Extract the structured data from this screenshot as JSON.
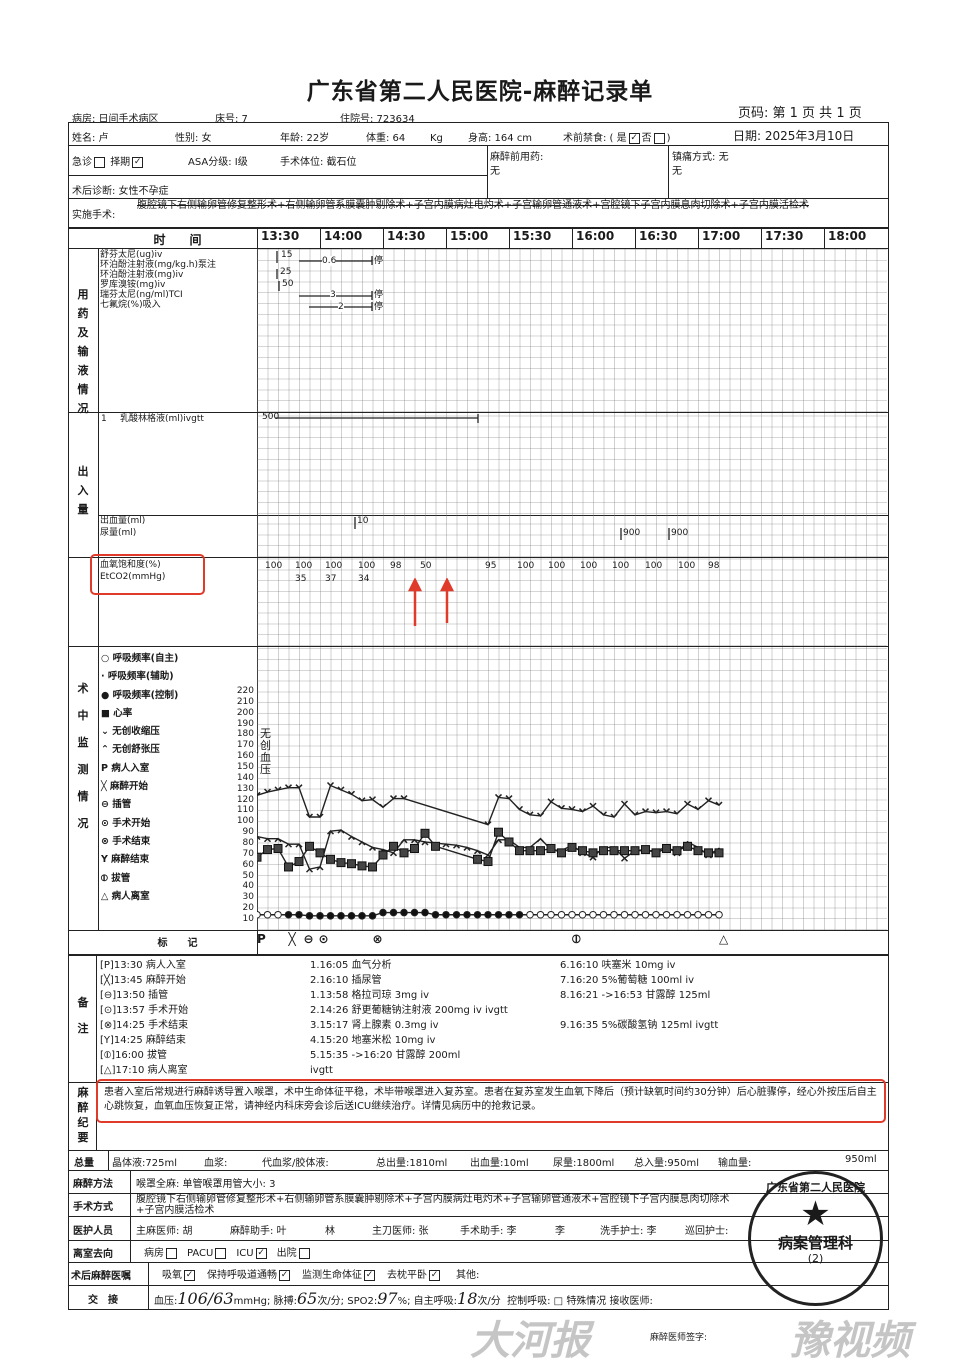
{
  "title": "广东省第二人民医院-麻醉记录单",
  "header": {
    "ward": "病房: 日间手术病区",
    "bed": "床号: 7",
    "admission_no": "住院号: 723634",
    "page": "页码: 第 1 页 共 1 页"
  },
  "patient": {
    "name": "姓名: 卢",
    "sex": "性别: 女",
    "age": "年龄: 22岁",
    "weight": "体重: 64",
    "weight_unit": "Kg",
    "height": "身高: 164 cm",
    "fasting": "术前禁食: ( 是",
    "fasting_yes": "✓",
    "fasting_no": "否",
    "date": "日期: 2025年3月10日",
    "emergency": "急诊",
    "elective": "择期",
    "elective_checked": "✓",
    "asa": "ASA分级: Ⅰ级",
    "position": "手术体位: 截石位",
    "premed_label": "麻醉前用药:",
    "premed": "无",
    "analgesia_label": "镇痛方式:",
    "analgesia": "无",
    "analgesia2": "无",
    "diagnosis": "术后诊断: 女性不孕症",
    "surgery_label": "实施手术:",
    "surgery": "腹腔镜下右侧输卵管修复整形术+右侧输卵管系膜囊肿剔除术+子宫内膜病灶电灼术+子宫输卵管通液术+宫腔镜下子宫内膜息肉切除术+子宫内膜活检术"
  },
  "timeline": {
    "label": "时　　间",
    "times": [
      "13:30",
      "14:00",
      "14:30",
      "15:00",
      "15:30",
      "16:00",
      "16:30",
      "17:00",
      "17:30",
      "18:00"
    ]
  },
  "medication": {
    "section": "用药及输液情况",
    "drugs": [
      "舒芬太尼(ug)iv",
      "环泊酚注射液(mg/kg.h)泵注",
      "环泊酚注射液(mg)iv",
      "罗库溴铵(mg)iv",
      "瑞芬太尼(ng/ml)TCI",
      "七氟烷(%)吸入"
    ],
    "marks": {
      "sufentanil": "15",
      "ciprofol_infusion": "0.6",
      "ciprofol_iv": "25",
      "rocuronium": "50",
      "remifentanil": "3",
      "sevoflurane": "2",
      "stop": "停"
    }
  },
  "io": {
    "section": "出入量",
    "fluid_no": "1",
    "fluid": "乳酸林格液(ml)ivgtt",
    "fluid_volume": "500",
    "blood_loss": "出血量(ml)",
    "urine": "尿量(ml)",
    "blood_mark": "10",
    "urine_marks": [
      "900",
      "900"
    ]
  },
  "spo2": {
    "label1": "血氧饱和度(%)",
    "label2": "EtCO2(mmHg)",
    "spo2_values": [
      "100",
      "100",
      "100",
      "100",
      "98",
      "50",
      "95",
      "100",
      "100",
      "100",
      "100",
      "100",
      "100",
      "98"
    ],
    "etco2_values": [
      "35",
      "37",
      "34"
    ]
  },
  "monitor": {
    "section": "术中监测情况",
    "legend": [
      "○ 呼吸频率(自主)",
      "· 呼吸频率(辅助)",
      "● 呼吸频率(控制)",
      "■ 心率",
      "⌄ 无创收缩压",
      "⌃ 无创舒张压",
      "P 病人入室",
      "╳ 麻醉开始",
      "⊖ 插管",
      "⊙ 手术开始",
      "⊗ 手术结束",
      "Y 麻醉结束",
      "⦶ 拔管",
      "△ 病人离室"
    ],
    "yticks": [
      "220",
      "210",
      "200",
      "190",
      "180",
      "170",
      "160",
      "150",
      "140",
      "130",
      "120",
      "110",
      "100",
      "90",
      "80",
      "70",
      "60",
      "50",
      "40",
      "30",
      "20",
      "10"
    ],
    "axis_text": "无创血压",
    "marker_label": "标　　记",
    "markers": [
      {
        "t": "13:30",
        "s": "P"
      },
      {
        "t": "13:45",
        "s": "╳"
      },
      {
        "t": "13:50",
        "s": "⊖"
      },
      {
        "t": "13:57",
        "s": "⊙"
      },
      {
        "t": "14:25",
        "s": "⊗"
      },
      {
        "t": "16:00",
        "s": "⦶"
      },
      {
        "t": "17:10",
        "s": "△"
      }
    ],
    "chart_data": {
      "type": "line",
      "ylim": [
        10,
        220
      ],
      "times": [
        "13:30",
        "13:35",
        "13:40",
        "13:45",
        "13:50",
        "13:55",
        "14:00",
        "14:05",
        "14:10",
        "14:15",
        "14:20",
        "14:25",
        "14:30",
        "14:35",
        "14:40",
        "14:45",
        "14:50",
        "14:55",
        "15:00",
        "15:05",
        "15:10",
        "15:15",
        "15:20",
        "15:25",
        "15:30",
        "15:35",
        "15:40",
        "15:45",
        "15:50",
        "15:55",
        "16:00",
        "16:05",
        "16:10",
        "16:15",
        "16:20",
        "16:25",
        "16:30",
        "16:35",
        "16:40",
        "16:45",
        "16:50",
        "16:55",
        "17:00",
        "17:05",
        "17:10"
      ],
      "series": [
        {
          "name": "无创收缩压",
          "values": [
            123,
            126,
            128,
            130,
            130,
            103,
            103,
            132,
            128,
            124,
            118,
            119,
            112,
            120,
            120,
            null,
            null,
            null,
            null,
            null,
            null,
            null,
            96,
            121,
            120,
            110,
            105,
            104,
            117,
            111,
            110,
            108,
            113,
            105,
            103,
            115,
            105,
            108,
            107,
            108,
            106,
            115,
            110,
            118,
            114
          ]
        },
        {
          "name": "无创舒张压",
          "values": [
            85,
            83,
            83,
            78,
            78,
            55,
            57,
            90,
            91,
            85,
            80,
            75,
            73,
            70,
            82,
            82,
            80,
            79,
            78,
            77,
            75,
            72,
            68,
            82,
            82,
            75,
            75,
            83,
            73,
            72,
            77,
            70,
            66,
            75,
            75,
            65,
            72,
            72,
            72,
            75,
            70,
            80,
            75,
            68,
            74
          ]
        },
        {
          "name": "心率",
          "values": [
            66,
            73,
            74,
            57,
            62,
            76,
            70,
            64,
            61,
            60,
            58,
            57,
            68,
            76,
            70,
            74,
            88,
            76,
            null,
            null,
            null,
            64,
            62,
            89,
            80,
            72,
            72,
            72,
            74,
            70,
            75,
            72,
            70,
            72,
            72,
            72,
            72,
            73,
            70,
            74,
            72,
            76,
            72,
            70,
            70
          ]
        },
        {
          "name": "呼吸频率",
          "values": [
            13,
            13,
            13,
            13,
            13,
            12,
            12,
            12,
            12,
            12,
            12,
            12,
            15,
            15,
            15,
            15,
            15,
            13,
            13,
            13,
            13,
            13,
            13,
            13,
            13,
            13,
            13,
            13,
            13,
            13,
            13,
            13,
            13,
            13,
            13,
            13,
            13,
            13,
            13,
            13,
            13,
            13,
            13,
            13,
            13
          ],
          "controlled_from": "13:45",
          "controlled_to": "15:35"
        }
      ]
    }
  },
  "notes": {
    "section": "备注",
    "events": [
      "[P]13:30 病人入室",
      "[╳]13:45 麻醉开始",
      "[⊖]13:50 插管",
      "[⊙]13:57 手术开始",
      "[⊗]14:25 手术结束",
      "[Y]14:25 麻醉结束",
      "[⦶]16:00 拔管",
      "[△]17:10 病人离室"
    ],
    "col2": [
      "1.16:05 血气分析",
      "2.16:10 插尿管",
      "1.13:58 格拉司琼 3mg iv",
      "2.14:26 舒更葡糖钠注射液 200mg iv ivgtt",
      "3.15:17 肾上腺素 0.3mg iv",
      "4.15:20 地塞米松 10mg iv",
      "5.15:35 ->16:20 甘露醇 200ml",
      "ivgtt"
    ],
    "col3": [
      "6.16:10 呋塞米 10mg iv",
      "7.16:20 5%葡萄糖 100ml iv",
      "8.16:21 ->16:53 甘露醇 125ml",
      "",
      "9.16:35 5%碳酸氢钠 125ml ivgtt"
    ]
  },
  "summary": {
    "section": "麻醉纪要",
    "text": "患者入室后常规进行麻醉诱导置入喉罩，术中生命体征平稳，术毕带喉罩进入复苏室。患者在复苏室发生血氧下降后（预计缺氧时间约30分钟）后心脏骤停，经心外按压后自主心跳恢复，血氧血压恢复正常，请神经内科床旁会诊后送ICU继续治疗。详情见病历中的抢救记录。"
  },
  "totals": {
    "label": "总量",
    "crystalloid": "晶体液:725ml",
    "plasma": "血浆:",
    "colloid": "代血浆/胶体液:",
    "output": "总出量:1810ml",
    "blood": "出血量:10ml",
    "urine": "尿量:1800ml",
    "input": "总入量:950ml",
    "transfusion": "输血量:",
    "other": "950ml"
  },
  "method": {
    "label": "麻醉方法",
    "value": "喉罩全麻: 单管喉罩用管大小: 3"
  },
  "surgery_method": {
    "label": "手术方式",
    "value": "腹腔镜下右侧输卵管修复整形术+右侧输卵管系膜囊肿剔除术+子宫内膜病灶电灼术+子宫输卵管通液术+宫腔镜下子宫内膜息肉切除术+子宫内膜活检术"
  },
  "staff": {
    "label": "医护人员",
    "anesthetist": "主麻医师: 胡",
    "assistant": "麻醉助手: 叶",
    "assistant2": "林",
    "surgeon": "主刀医师: 张",
    "surgical_assistant": "手术助手: 李",
    "surgical_assistant2": "李",
    "scrub_nurse": "洗手护士: 李",
    "circulating": "巡回护士:"
  },
  "destination": {
    "label": "离室去向",
    "options": [
      {
        "l": "病房",
        "c": ""
      },
      {
        "l": "PACU",
        "c": ""
      },
      {
        "l": "ICU",
        "c": "✓"
      },
      {
        "l": "出院",
        "c": ""
      }
    ]
  },
  "orders": {
    "label": "术后麻醉医嘱",
    "items": [
      {
        "l": "吸氧",
        "c": "✓"
      },
      {
        "l": "保持呼吸道通畅",
        "c": "✓"
      },
      {
        "l": "监测生命体征",
        "c": "✓"
      },
      {
        "l": "去枕平卧",
        "c": "✓"
      }
    ],
    "other": "其他:"
  },
  "handover": {
    "label": "交　接",
    "bp": "血压:",
    "bp_value": "106/63",
    "bp_unit": "mmHg;",
    "pulse": "脉搏:",
    "pulse_value": "65",
    "pulse_unit": "次/分;",
    "spo2": "SPO2:",
    "spo2_value": "97",
    "spo2_unit": "%;",
    "resp": "自主呼吸:",
    "resp_value": "18",
    "resp_unit": "次/分",
    "controlled": "控制呼吸: □",
    "special": "特殊情况",
    "receiver": "接收医师:",
    "signature": "麻醉医师签字:"
  },
  "stamp": {
    "text": "广东省第二人民医院",
    "dept": "病案管理科",
    "no": "(2)"
  },
  "watermark": {
    "left": "大河报",
    "right": "豫视频"
  },
  "colors": {
    "highlight": "#e03a2a",
    "ink": "#1a1a1a"
  }
}
